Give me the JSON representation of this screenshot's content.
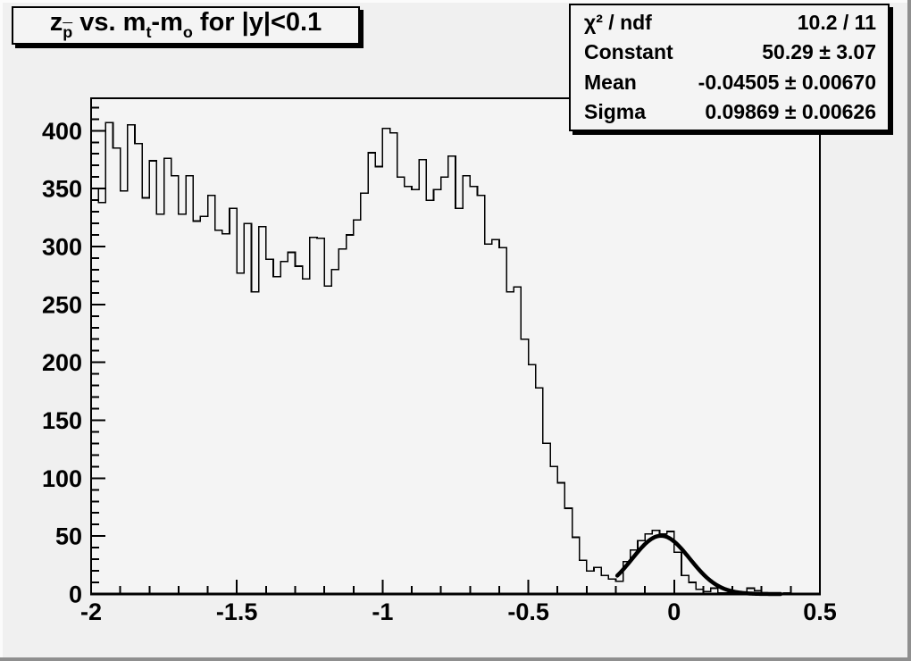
{
  "title": {
    "segments": [
      {
        "text": "z"
      },
      {
        "text": "p",
        "sub": true,
        "overline": true
      },
      {
        "text": " vs. m"
      },
      {
        "text": "t",
        "sub": true
      },
      {
        "text": "-m"
      },
      {
        "text": "o",
        "sub": true
      },
      {
        "text": " for |y|<0.1"
      }
    ]
  },
  "stats": {
    "rows": [
      {
        "label": "χ² / ndf",
        "value": "10.2 / 11"
      },
      {
        "label": "Constant",
        "value": "50.29 ± 3.07"
      },
      {
        "label": "Mean",
        "value": "-0.04505 ± 0.00670"
      },
      {
        "label": "Sigma",
        "value": "0.09869 ± 0.00626"
      }
    ]
  },
  "colors": {
    "canvas": "#f0f0f0",
    "frame_fill": "#f4f4f4",
    "line": "#000000"
  },
  "chart_data": {
    "type": "bar",
    "style": "step-histogram",
    "title": "z_p vs. m_t-m_o for |y|<0.1",
    "xlabel": "",
    "ylabel": "",
    "xlim": [
      -2,
      0.5
    ],
    "ylim": [
      0,
      428
    ],
    "grid": false,
    "bin_start": -2,
    "bin_width": 0.025,
    "values": [
      350,
      338,
      407,
      385,
      348,
      405,
      389,
      342,
      374,
      328,
      376,
      361,
      328,
      361,
      322,
      326,
      344,
      314,
      311,
      333,
      277,
      320,
      261,
      317,
      289,
      274,
      287,
      295,
      283,
      272,
      308,
      307,
      266,
      280,
      298,
      310,
      323,
      346,
      381,
      369,
      402,
      398,
      360,
      352,
      349,
      375,
      340,
      349,
      360,
      378,
      333,
      361,
      352,
      344,
      302,
      306,
      299,
      261,
      265,
      220,
      198,
      178,
      130,
      110,
      96,
      74,
      49,
      29,
      20,
      23,
      16,
      13,
      11,
      28,
      38,
      46,
      52,
      55,
      52,
      54,
      36,
      16,
      10,
      4,
      2,
      5,
      1,
      1,
      0,
      1,
      5,
      3,
      0,
      1,
      0,
      1,
      0,
      0,
      0,
      0
    ],
    "x_major_ticks": [
      -2,
      -1.5,
      -1,
      -0.5,
      0,
      0.5
    ],
    "x_tick_labels": [
      "-2",
      "-1.5",
      "-1",
      "-0.5",
      "0",
      "0.5"
    ],
    "x_minor_step": 0.1,
    "y_major_ticks": [
      0,
      50,
      100,
      150,
      200,
      250,
      300,
      350,
      400
    ],
    "y_tick_labels": [
      "0",
      "50",
      "100",
      "150",
      "200",
      "250",
      "300",
      "350",
      "400"
    ],
    "y_minor_step": 10,
    "fit": {
      "type": "gaussian",
      "constant": 50.29,
      "mean": -0.04505,
      "sigma": 0.09869,
      "x_range": [
        -0.195,
        0.365
      ]
    }
  }
}
